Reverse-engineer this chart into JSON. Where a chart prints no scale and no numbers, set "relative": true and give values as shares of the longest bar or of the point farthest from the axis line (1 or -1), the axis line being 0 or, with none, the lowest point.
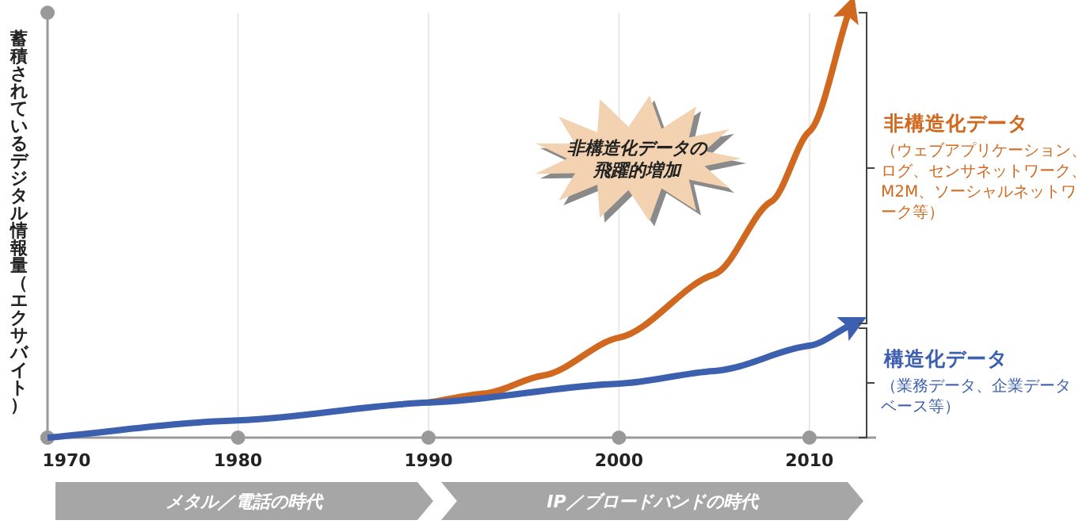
{
  "chart_data": {
    "type": "line",
    "relative": true,
    "ylabel": "蓄積されているデジタル情報量（エクサバイト）",
    "xlim": [
      1970,
      2013.5
    ],
    "xticks": [
      1970,
      1980,
      1990,
      2000,
      2010
    ],
    "grid": "x",
    "series": [
      {
        "name": "非構造化データ",
        "color": "#d0691f",
        "x": [
          1990,
          1993,
          1996,
          2000,
          2005,
          2008,
          2010,
          2012
        ],
        "values": [
          0.083,
          0.105,
          0.147,
          0.237,
          0.387,
          0.56,
          0.726,
          1
        ]
      },
      {
        "name": "構造化データ",
        "color": "#3c5fae",
        "x": [
          1970,
          1980,
          1990,
          2000,
          2005,
          2010,
          2012
        ],
        "values": [
          0,
          0.041,
          0.083,
          0.128,
          0.158,
          0.218,
          0.263
        ]
      }
    ],
    "annotations": [
      "非構造化データの飛躍的増加",
      "（ウェブアプリケーション、ログ、センサネットワーク、M2M、ソーシャルネットワーク等）",
      "（業務データ、企業データベース等）",
      "メタル／電話の時代",
      "IP／ブロードバンドの時代"
    ]
  }
}
